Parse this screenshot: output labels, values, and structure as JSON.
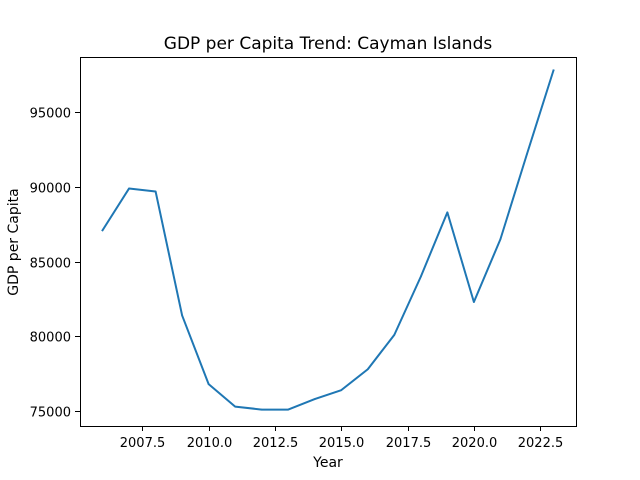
{
  "chart_data": {
    "type": "line",
    "title": "GDP per Capita Trend: Cayman Islands",
    "xlabel": "Year",
    "ylabel": "GDP per Capita",
    "grid": false,
    "legend": "none",
    "xlim": [
      2005.15,
      2023.85
    ],
    "ylim": [
      74000,
      98700
    ],
    "xticks": [
      2007.5,
      2010.0,
      2012.5,
      2015.0,
      2017.5,
      2020.0,
      2022.5
    ],
    "xtick_labels": [
      "2007.5",
      "2010.0",
      "2012.5",
      "2015.0",
      "2017.5",
      "2020.0",
      "2022.5"
    ],
    "yticks": [
      75000,
      80000,
      85000,
      90000,
      95000
    ],
    "ytick_labels": [
      "75000",
      "80000",
      "85000",
      "90000",
      "95000"
    ],
    "series": [
      {
        "color": "#1f77b4",
        "x": [
          2006,
          2007,
          2008,
          2009,
          2010,
          2011,
          2012,
          2013,
          2014,
          2015,
          2016,
          2017,
          2018,
          2019,
          2020,
          2021,
          2022,
          2023
        ],
        "values": [
          87100,
          89900,
          89700,
          81400,
          76800,
          75300,
          75100,
          75100,
          75800,
          76400,
          77800,
          80100,
          84000,
          88300,
          82300,
          86500,
          92200,
          97800
        ]
      }
    ]
  }
}
